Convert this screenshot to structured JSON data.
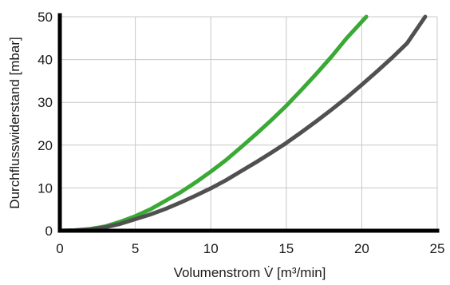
{
  "chart_data": {
    "type": "line",
    "title": "",
    "xlabel": "Volumenstrom V̇ [m³/min]",
    "ylabel": "Durchflusswiderstand [mbar]",
    "xlim": [
      0,
      25
    ],
    "ylim": [
      0,
      50
    ],
    "x_ticks": [
      0,
      5,
      10,
      15,
      20,
      25
    ],
    "y_ticks": [
      0,
      10,
      20,
      30,
      40,
      50
    ],
    "grid": true,
    "legend": "none",
    "series": [
      {
        "color": "#3aa935",
        "x": [
          0,
          1,
          2,
          3,
          4,
          5,
          6,
          7,
          8,
          9,
          10,
          11,
          12,
          13,
          14,
          15,
          16,
          17,
          18,
          19,
          20.3
        ],
        "y": [
          0,
          0.1,
          0.4,
          1.0,
          2.1,
          3.4,
          5.0,
          7.0,
          9.0,
          11.3,
          13.8,
          16.5,
          19.5,
          22.6,
          25.8,
          29.2,
          32.9,
          36.7,
          40.7,
          45.0,
          50.0
        ]
      },
      {
        "color": "#505050",
        "x": [
          0,
          1,
          2,
          3,
          4,
          5,
          6,
          7,
          8,
          9,
          10,
          11,
          12,
          13,
          14,
          15,
          16,
          17,
          18,
          19,
          20,
          21,
          22,
          23,
          24.2
        ],
        "y": [
          0,
          0.1,
          0.3,
          0.8,
          1.6,
          2.7,
          3.8,
          5.1,
          6.6,
          8.2,
          9.9,
          11.8,
          13.9,
          16.0,
          18.2,
          20.5,
          23.0,
          25.6,
          28.3,
          31.1,
          34.1,
          37.2,
          40.4,
          43.8,
          50.0
        ]
      }
    ]
  }
}
